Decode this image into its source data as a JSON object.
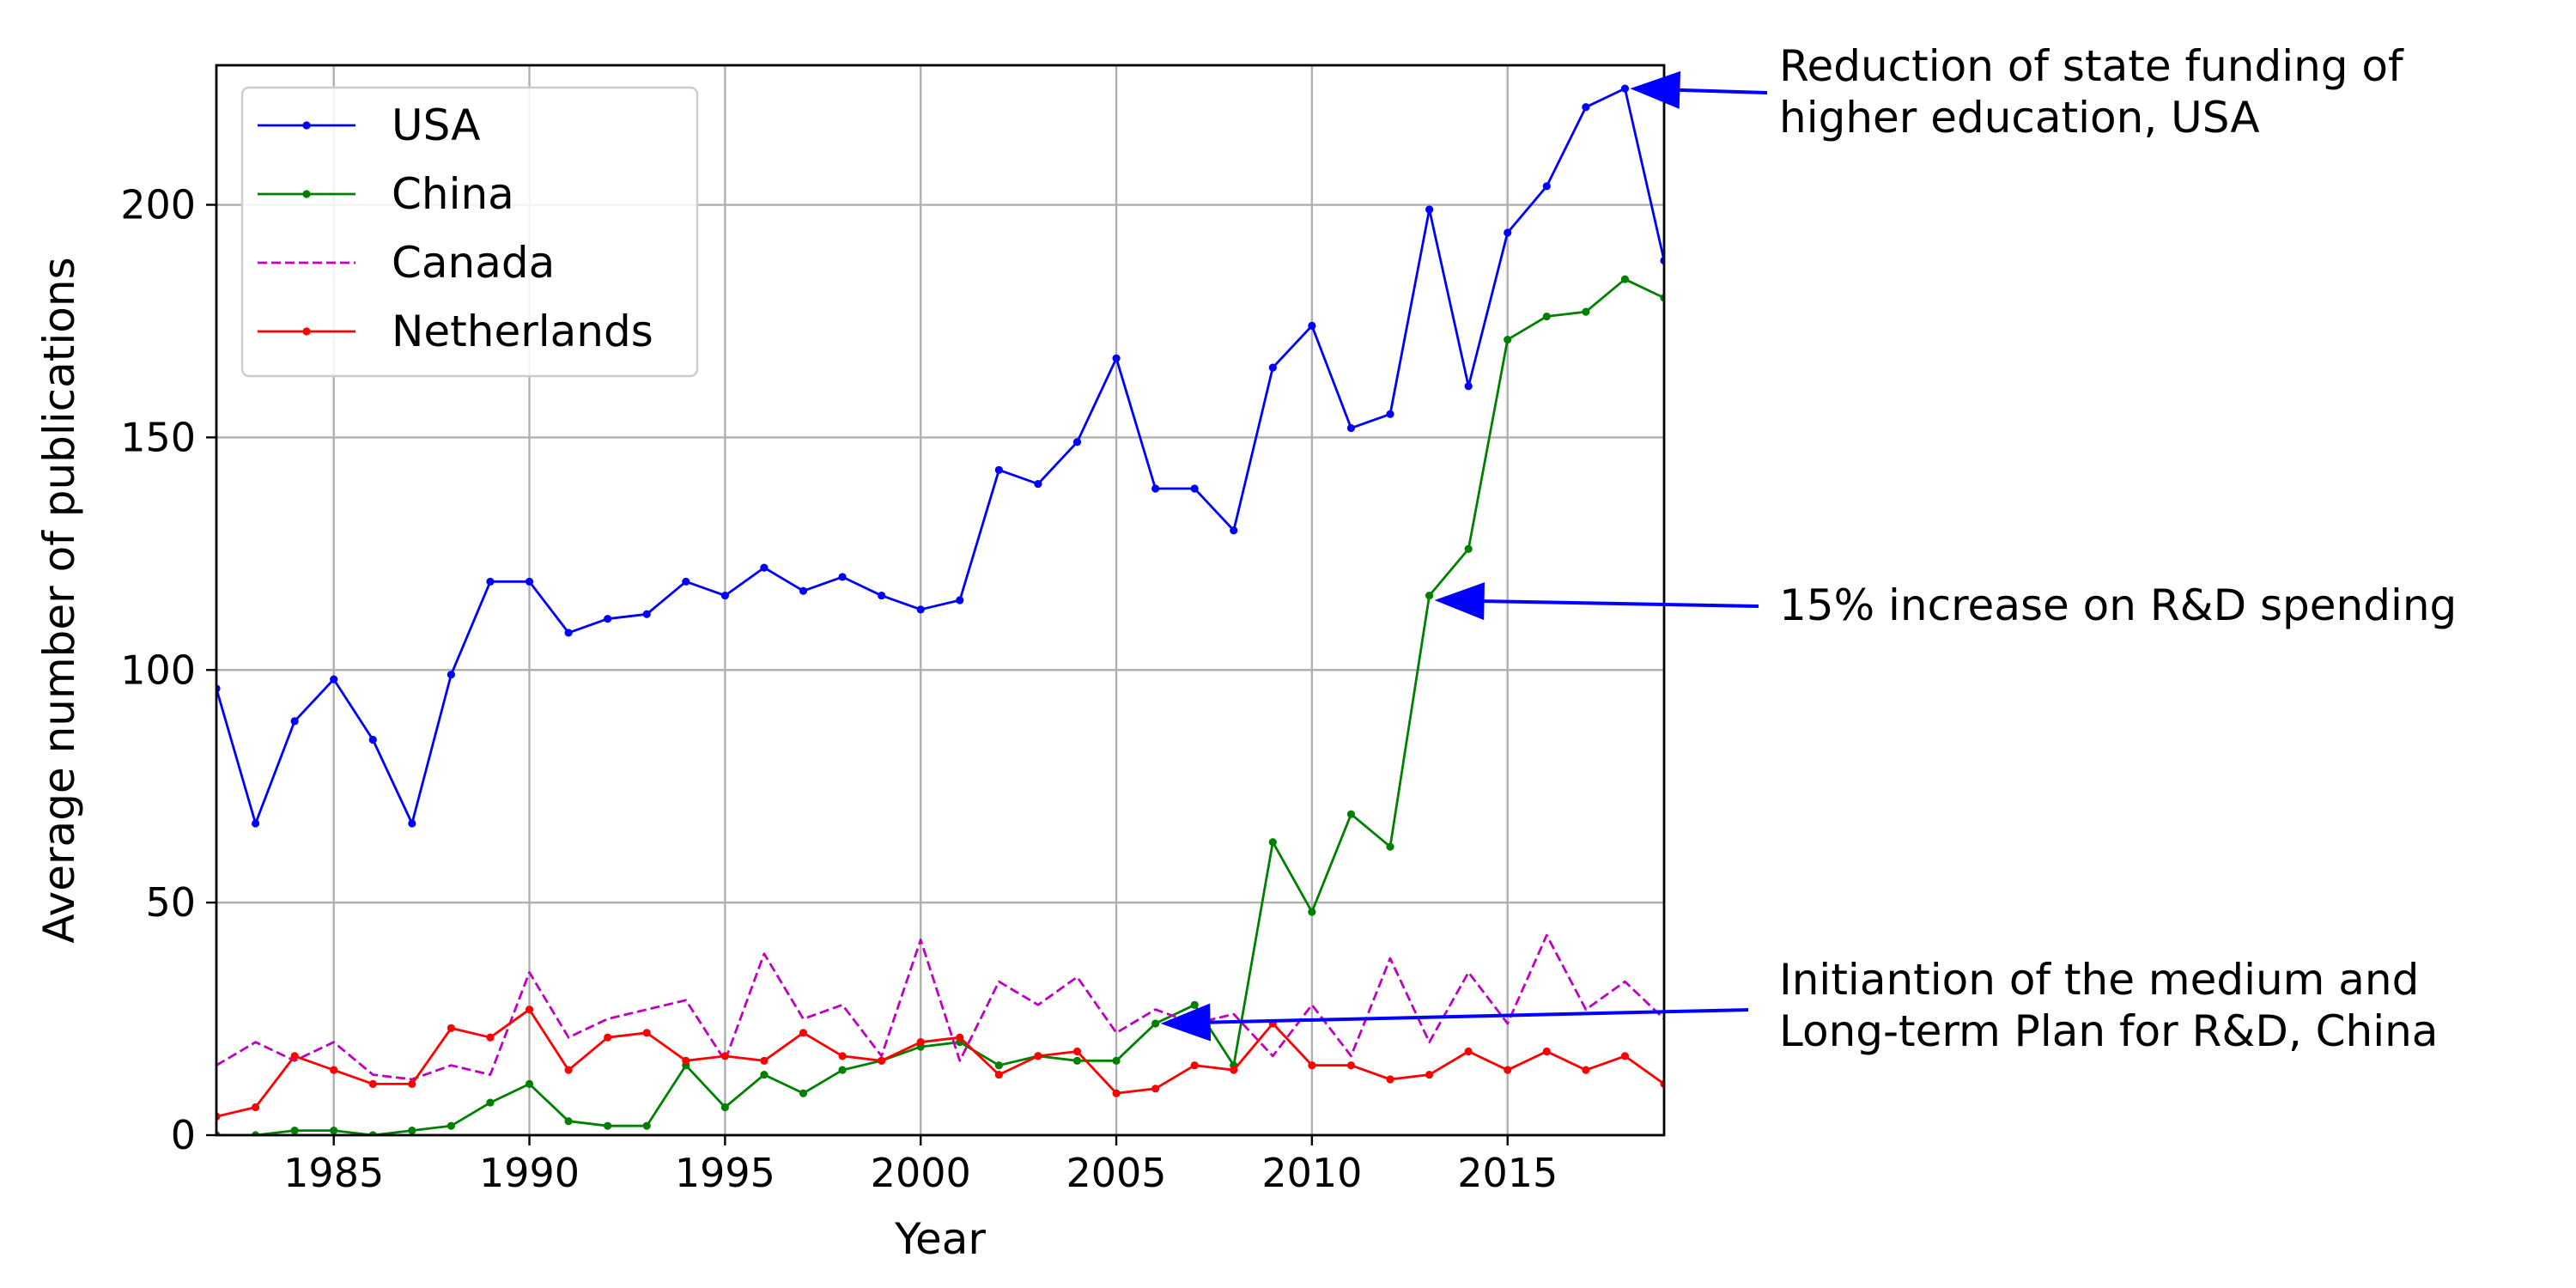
{
  "chart_data": {
    "type": "line",
    "xlabel": "Year",
    "ylabel": "Average number of publications",
    "xlim": [
      1982,
      2019
    ],
    "ylim": [
      0,
      230
    ],
    "xticks": [
      1985,
      1990,
      1995,
      2000,
      2005,
      2010,
      2015
    ],
    "yticks": [
      0,
      50,
      100,
      150,
      200
    ],
    "grid": true,
    "legend_position": "top-left",
    "x": [
      1982,
      1983,
      1984,
      1985,
      1986,
      1987,
      1988,
      1989,
      1990,
      1991,
      1992,
      1993,
      1994,
      1995,
      1996,
      1997,
      1998,
      1999,
      2000,
      2001,
      2002,
      2003,
      2004,
      2005,
      2006,
      2007,
      2008,
      2009,
      2010,
      2011,
      2012,
      2013,
      2014,
      2015,
      2016,
      2017,
      2018,
      2019
    ],
    "series": [
      {
        "name": "USA",
        "color": "#0000ff",
        "style": "solid",
        "marker": true,
        "values": [
          96,
          67,
          89,
          98,
          85,
          67,
          99,
          119,
          119,
          108,
          111,
          112,
          119,
          116,
          122,
          117,
          120,
          116,
          113,
          115,
          143,
          140,
          149,
          167,
          139,
          139,
          130,
          165,
          174,
          152,
          155,
          199,
          161,
          194,
          204,
          221,
          225,
          188
        ]
      },
      {
        "name": "China",
        "color": "#008000",
        "style": "solid",
        "marker": true,
        "values": [
          0,
          0,
          1,
          1,
          0,
          1,
          2,
          7,
          11,
          3,
          2,
          2,
          15,
          6,
          13,
          9,
          14,
          16,
          19,
          20,
          15,
          17,
          16,
          16,
          24,
          28,
          15,
          63,
          48,
          69,
          62,
          116,
          126,
          171,
          176,
          177,
          184,
          180
        ]
      },
      {
        "name": "Canada",
        "color": "#bf00bf",
        "style": "dashed",
        "marker": false,
        "values": [
          15,
          20,
          16,
          20,
          13,
          12,
          15,
          13,
          35,
          21,
          25,
          27,
          29,
          16,
          39,
          25,
          28,
          17,
          42,
          16,
          33,
          28,
          34,
          22,
          27,
          24,
          26,
          17,
          28,
          17,
          38,
          20,
          35,
          24,
          43,
          27,
          33,
          25
        ]
      },
      {
        "name": "Netherlands",
        "color": "#ff0000",
        "style": "solid",
        "marker": true,
        "values": [
          4,
          6,
          17,
          14,
          11,
          11,
          23,
          21,
          27,
          14,
          21,
          22,
          16,
          17,
          16,
          22,
          17,
          16,
          20,
          21,
          13,
          17,
          18,
          9,
          10,
          15,
          14,
          24,
          15,
          15,
          12,
          13,
          18,
          14,
          18,
          14,
          17,
          11
        ]
      }
    ],
    "annotations": [
      {
        "lines": [
          "Reduction of state funding of",
          "higher education, USA"
        ],
        "x": 2018,
        "y": 225,
        "color": "#0000ff"
      },
      {
        "lines": [
          "15% increase on R&D spending"
        ],
        "x": 2013,
        "y": 115,
        "color": "#0000ff"
      },
      {
        "lines": [
          "Initiantion of the medium and",
          "Long-term Plan for R&D, China"
        ],
        "x": 2006,
        "y": 24,
        "color": "#0000ff"
      }
    ]
  }
}
